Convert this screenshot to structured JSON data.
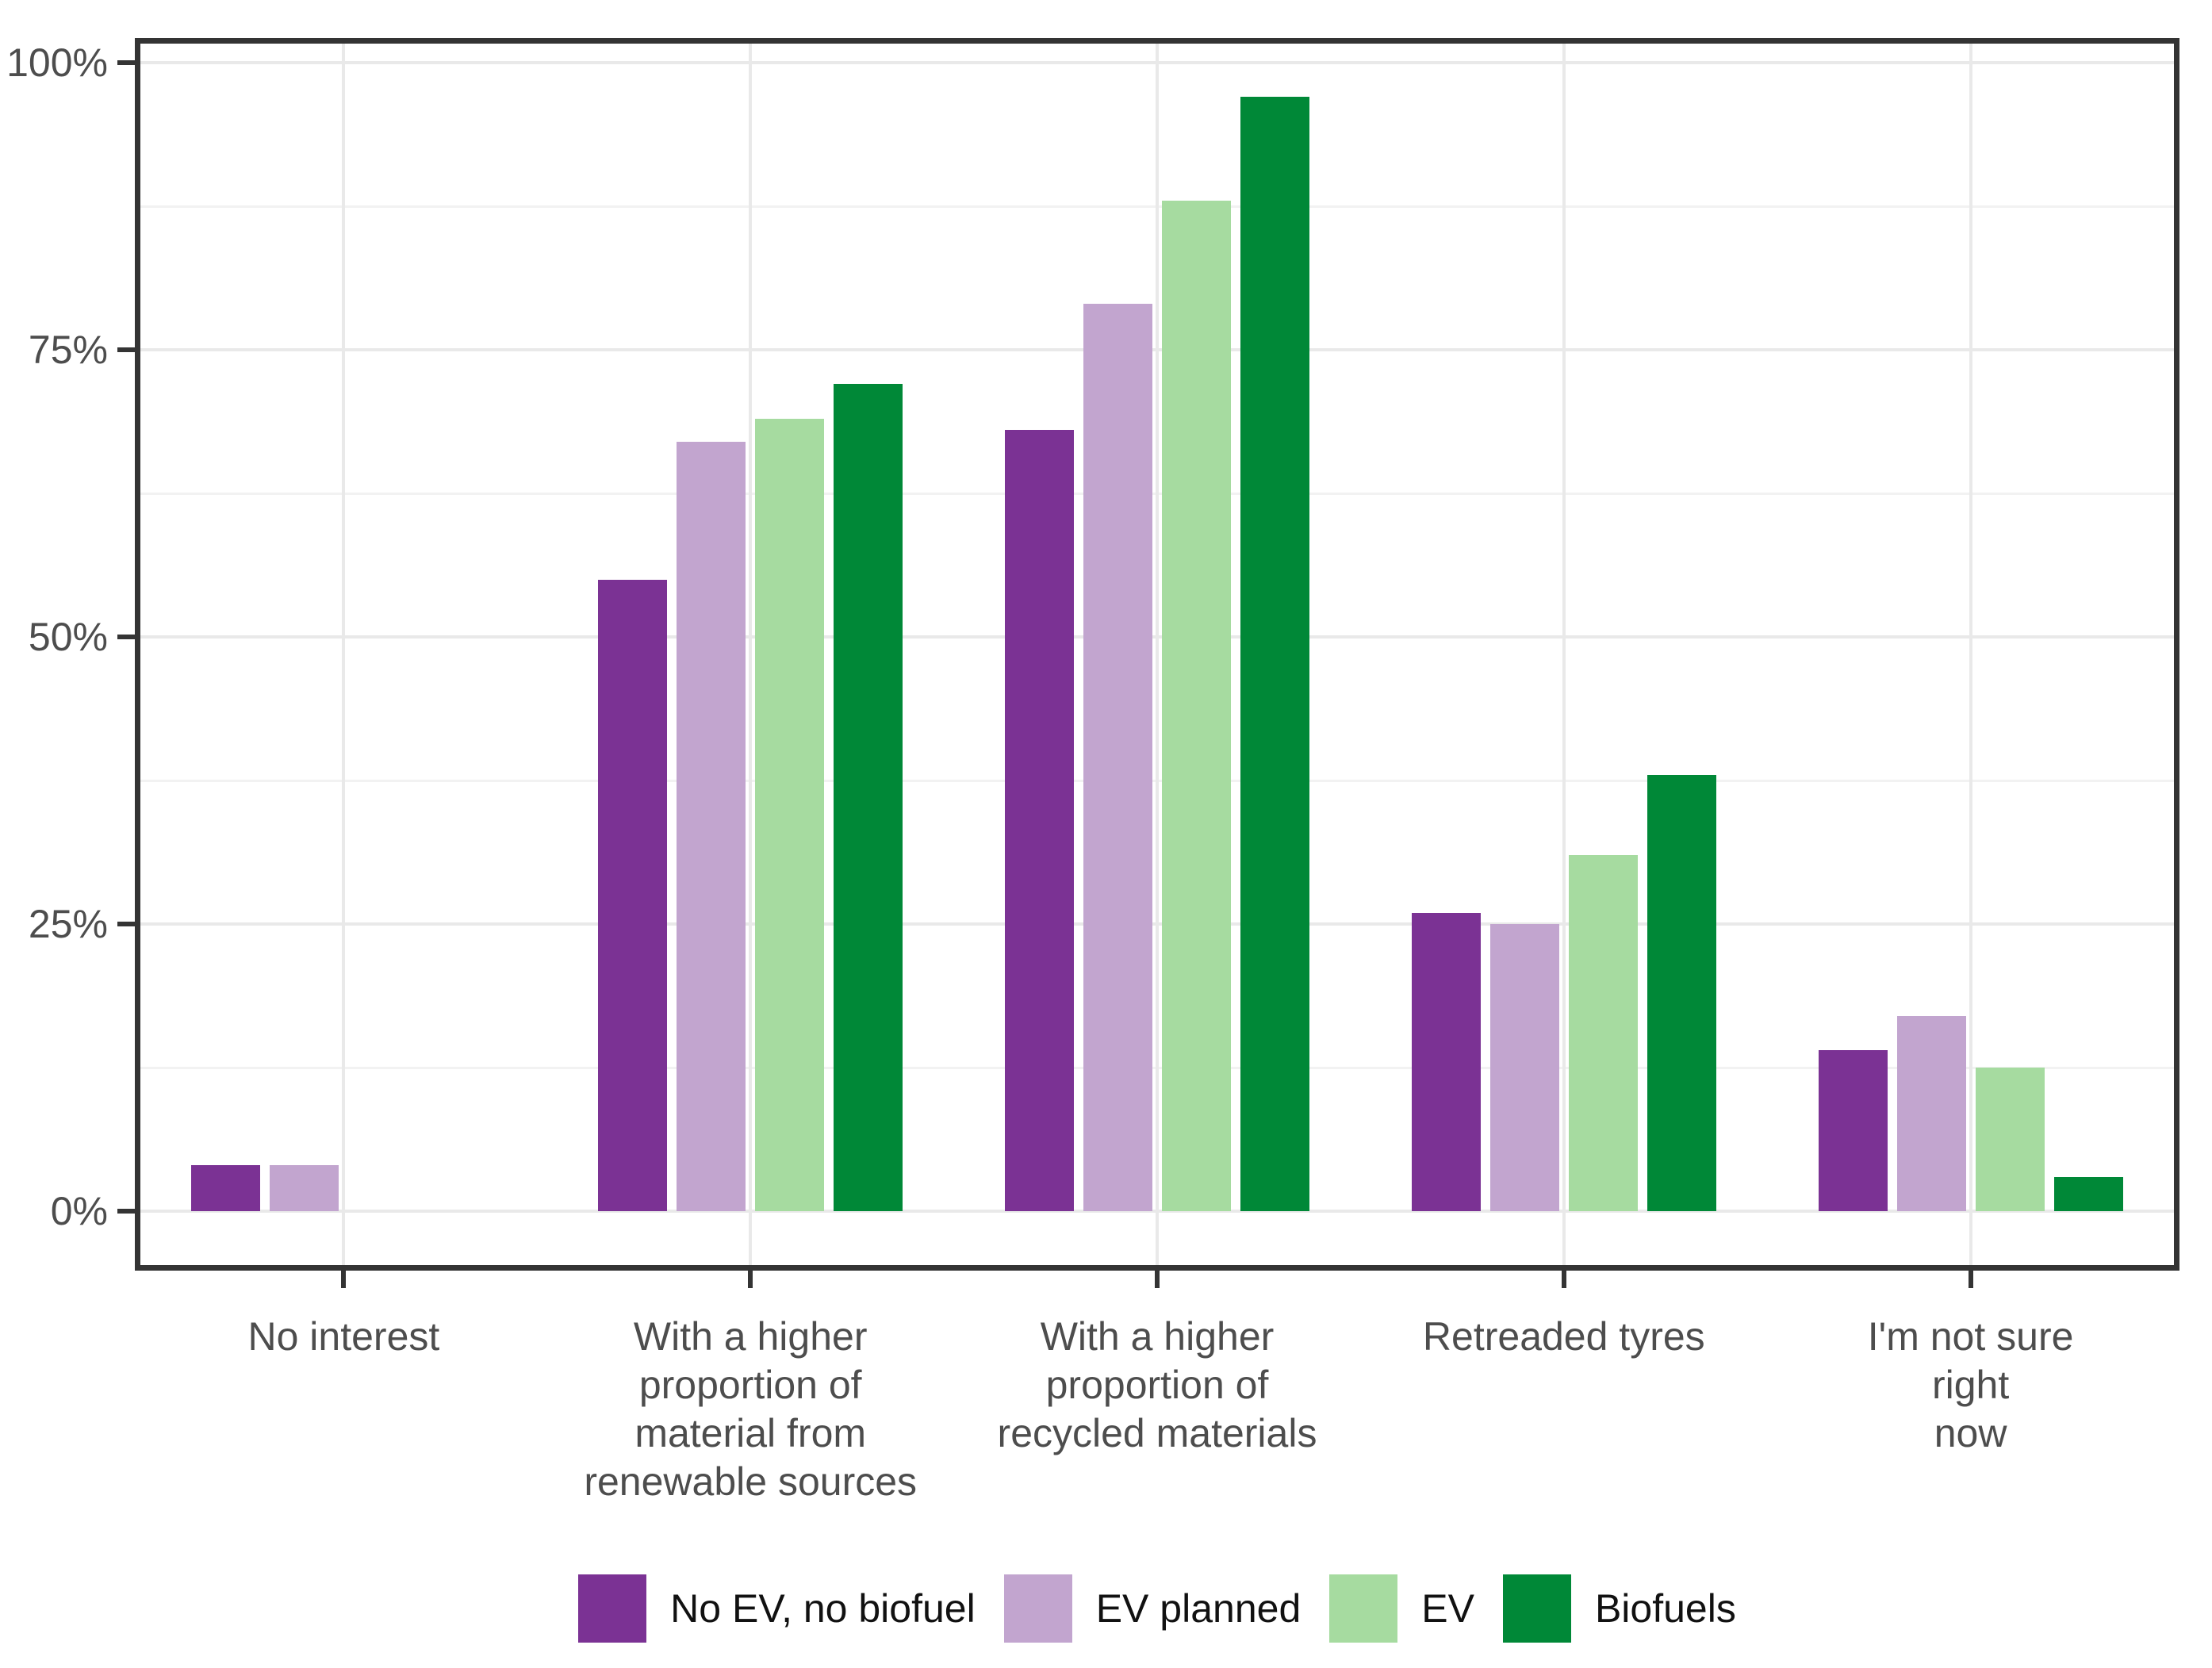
{
  "chart_data": {
    "type": "bar",
    "orientation": "vertical",
    "title": "",
    "xlabel": "",
    "ylabel": "",
    "categories": [
      "No interest",
      "With a higher proportion of material from renewable sources",
      "With a higher proportion of recycled materials",
      "Retreaded tyres",
      "I'm not sure right now"
    ],
    "category_lines": [
      [
        "No interest"
      ],
      [
        "With a higher",
        "proportion of",
        "material from",
        "renewable sources"
      ],
      [
        "With a higher",
        "proportion of",
        "recycled materials"
      ],
      [
        "Retreaded tyres"
      ],
      [
        "I'm not sure right",
        "now"
      ]
    ],
    "series": [
      {
        "name": "No EV, no biofuel",
        "color": "#7b3294",
        "values": [
          4,
          55,
          68,
          26,
          14
        ]
      },
      {
        "name": "EV planned",
        "color": "#c2a5cf",
        "values": [
          4,
          67,
          79,
          25,
          17
        ]
      },
      {
        "name": "EV",
        "color": "#a6dba0",
        "values": [
          0,
          69,
          88,
          31,
          12.5
        ]
      },
      {
        "name": "Biofuels",
        "color": "#008837",
        "values": [
          0,
          72,
          97,
          38,
          3
        ]
      }
    ],
    "ylim": [
      0,
      100
    ],
    "yticks": [
      {
        "value": 0,
        "label": "0%"
      },
      {
        "value": 25,
        "label": "25%"
      },
      {
        "value": 50,
        "label": "50%"
      },
      {
        "value": 75,
        "label": "75%"
      },
      {
        "value": 100,
        "label": "100%"
      }
    ],
    "yticks_minor": [
      12.5,
      37.5,
      62.5,
      87.5
    ],
    "grid": true,
    "legend_position": "bottom",
    "colors": {
      "grid_major": "#e9e9e9",
      "grid_minor": "#f2f2f2",
      "panel_border": "#343434",
      "tick_mark": "#343434",
      "axis_text": "#4d4d4d",
      "legend_text": "#111111",
      "background": "#ffffff"
    }
  }
}
